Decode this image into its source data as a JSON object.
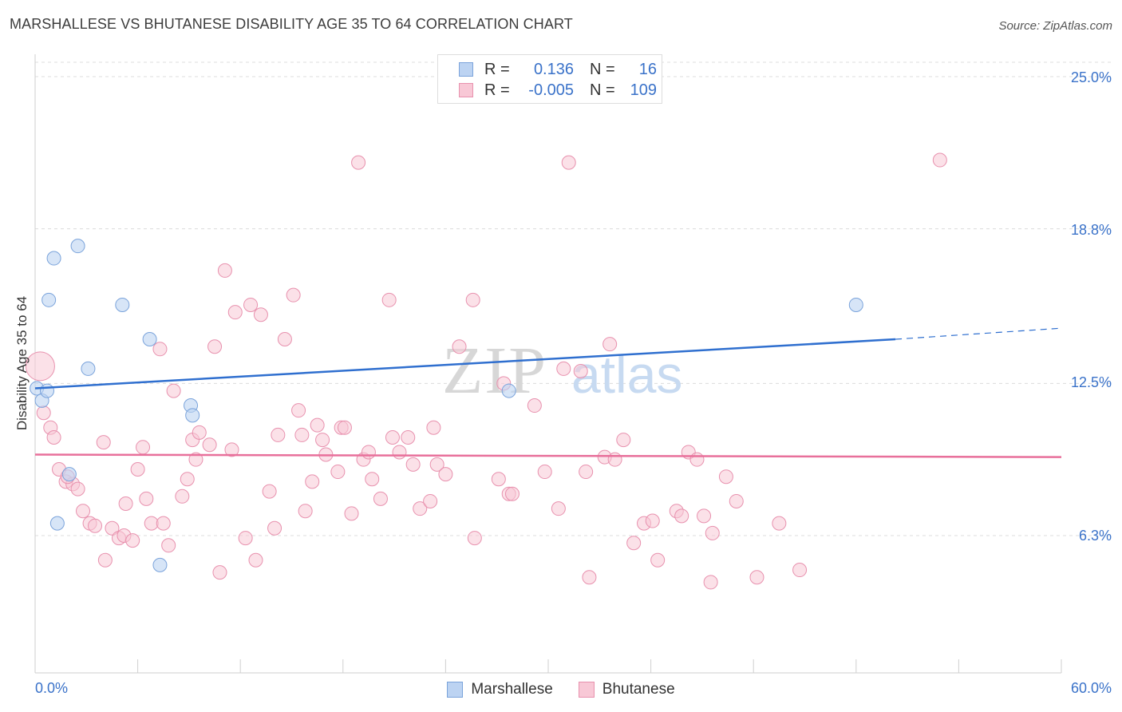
{
  "title": "MARSHALLESE VS BHUTANESE DISABILITY AGE 35 TO 64 CORRELATION CHART",
  "source": "Source: ZipAtlas.com",
  "colors": {
    "blue_fill": "#bcd3f2",
    "blue_stroke": "#7aa3db",
    "blue_line": "#2f6fcf",
    "pink_fill": "#f8c8d6",
    "pink_stroke": "#e891ae",
    "pink_line": "#e8709b",
    "axis_label": "#3a72c9",
    "grid": "#dcdcdc"
  },
  "legend": {
    "row1": {
      "r_label": "R =",
      "r_value": "0.136",
      "n_label": "N =",
      "n_value": "16"
    },
    "row2": {
      "r_label": "R =",
      "r_value": "-0.005",
      "n_label": "N =",
      "n_value": "109"
    }
  },
  "watermark": {
    "zip": "ZIP",
    "atlas": "atlas"
  },
  "chart_data": {
    "type": "scatter",
    "title": "MARSHALLESE VS BHUTANESE DISABILITY AGE 35 TO 64 CORRELATION CHART",
    "xlabel": "",
    "ylabel": "Disability Age 35 to 64",
    "xlim": [
      0,
      60
    ],
    "ylim": [
      0,
      26
    ],
    "x_tick_labels": [
      "0.0%",
      "60.0%"
    ],
    "y_ticks": [
      {
        "value": 25.0,
        "label": "25.0%"
      },
      {
        "value": 18.8,
        "label": "18.8%"
      },
      {
        "value": 12.5,
        "label": "12.5%"
      },
      {
        "value": 6.3,
        "label": "6.3%"
      }
    ],
    "series": [
      {
        "name": "Marshallese",
        "color": "blue",
        "R": 0.136,
        "N": 16,
        "trend": {
          "x0": 0,
          "y0": 12.3,
          "x1": 50.3,
          "y1": 14.3,
          "dashed_to_x": 60,
          "dashed_to_y": 14.75
        },
        "points": [
          [
            0.1,
            12.3
          ],
          [
            0.4,
            11.8
          ],
          [
            0.7,
            12.2
          ],
          [
            0.8,
            15.9
          ],
          [
            1.1,
            17.6
          ],
          [
            2.5,
            18.1
          ],
          [
            3.1,
            13.1
          ],
          [
            5.1,
            15.7
          ],
          [
            6.7,
            14.3
          ],
          [
            9.1,
            11.6
          ],
          [
            9.2,
            11.2
          ],
          [
            2.0,
            8.8
          ],
          [
            1.3,
            6.8
          ],
          [
            7.3,
            5.1
          ],
          [
            27.7,
            12.2
          ],
          [
            48.0,
            15.7
          ]
        ]
      },
      {
        "name": "Bhutanese",
        "color": "pink",
        "R": -0.005,
        "N": 109,
        "trend": {
          "x0": 0,
          "y0": 9.6,
          "x1": 60,
          "y1": 9.5
        },
        "points": [
          [
            0.3,
            13.2
          ],
          [
            0.5,
            11.3
          ],
          [
            0.9,
            10.7
          ],
          [
            1.1,
            10.3
          ],
          [
            1.4,
            9.0
          ],
          [
            1.8,
            8.5
          ],
          [
            2.2,
            8.4
          ],
          [
            2.5,
            8.2
          ],
          [
            2.8,
            7.3
          ],
          [
            3.2,
            6.8
          ],
          [
            3.5,
            6.7
          ],
          [
            4.1,
            5.3
          ],
          [
            4.0,
            10.1
          ],
          [
            4.5,
            6.6
          ],
          [
            4.9,
            6.2
          ],
          [
            5.2,
            6.3
          ],
          [
            5.3,
            7.6
          ],
          [
            5.7,
            6.1
          ],
          [
            6.0,
            9.0
          ],
          [
            6.3,
            9.9
          ],
          [
            6.5,
            7.8
          ],
          [
            6.8,
            6.8
          ],
          [
            7.3,
            13.9
          ],
          [
            7.5,
            6.8
          ],
          [
            7.8,
            5.9
          ],
          [
            8.1,
            12.2
          ],
          [
            8.6,
            7.9
          ],
          [
            8.9,
            8.6
          ],
          [
            9.2,
            10.2
          ],
          [
            9.4,
            9.4
          ],
          [
            9.6,
            10.5
          ],
          [
            10.2,
            10.0
          ],
          [
            10.5,
            14.0
          ],
          [
            10.8,
            4.8
          ],
          [
            11.1,
            17.1
          ],
          [
            11.5,
            9.8
          ],
          [
            11.7,
            15.4
          ],
          [
            12.3,
            6.2
          ],
          [
            12.6,
            15.7
          ],
          [
            12.9,
            5.3
          ],
          [
            13.2,
            15.3
          ],
          [
            13.7,
            8.1
          ],
          [
            14.0,
            6.6
          ],
          [
            14.2,
            10.4
          ],
          [
            14.6,
            14.3
          ],
          [
            15.1,
            16.1
          ],
          [
            15.4,
            11.4
          ],
          [
            15.6,
            10.4
          ],
          [
            15.8,
            7.3
          ],
          [
            16.2,
            8.5
          ],
          [
            16.5,
            10.8
          ],
          [
            16.8,
            10.2
          ],
          [
            17.0,
            9.6
          ],
          [
            17.7,
            8.9
          ],
          [
            17.9,
            10.7
          ],
          [
            18.1,
            10.7
          ],
          [
            18.5,
            7.2
          ],
          [
            18.9,
            21.5
          ],
          [
            19.2,
            9.4
          ],
          [
            19.5,
            9.7
          ],
          [
            19.7,
            8.6
          ],
          [
            20.2,
            7.8
          ],
          [
            20.7,
            15.9
          ],
          [
            20.9,
            10.3
          ],
          [
            21.3,
            9.7
          ],
          [
            21.8,
            10.3
          ],
          [
            22.1,
            9.2
          ],
          [
            22.5,
            7.4
          ],
          [
            23.1,
            7.7
          ],
          [
            23.3,
            10.7
          ],
          [
            23.5,
            9.2
          ],
          [
            24.0,
            8.8
          ],
          [
            24.8,
            14.0
          ],
          [
            25.6,
            15.9
          ],
          [
            25.7,
            6.2
          ],
          [
            27.1,
            8.6
          ],
          [
            27.4,
            12.5
          ],
          [
            27.7,
            8.0
          ],
          [
            27.9,
            8.0
          ],
          [
            29.2,
            11.6
          ],
          [
            29.8,
            8.9
          ],
          [
            30.6,
            7.4
          ],
          [
            30.9,
            13.1
          ],
          [
            31.2,
            21.5
          ],
          [
            31.9,
            13.0
          ],
          [
            32.2,
            8.9
          ],
          [
            32.4,
            4.6
          ],
          [
            33.3,
            9.5
          ],
          [
            33.6,
            14.1
          ],
          [
            33.9,
            9.4
          ],
          [
            34.4,
            10.2
          ],
          [
            35.0,
            6.0
          ],
          [
            35.6,
            6.8
          ],
          [
            36.1,
            6.9
          ],
          [
            36.4,
            5.3
          ],
          [
            37.5,
            7.3
          ],
          [
            37.8,
            7.1
          ],
          [
            38.2,
            9.7
          ],
          [
            38.7,
            9.4
          ],
          [
            39.1,
            7.1
          ],
          [
            39.5,
            4.4
          ],
          [
            39.6,
            6.4
          ],
          [
            40.4,
            8.7
          ],
          [
            41.0,
            7.7
          ],
          [
            42.2,
            4.6
          ],
          [
            43.5,
            6.8
          ],
          [
            44.7,
            4.9
          ],
          [
            52.9,
            21.6
          ],
          [
            1.9,
            8.7
          ]
        ]
      }
    ]
  }
}
